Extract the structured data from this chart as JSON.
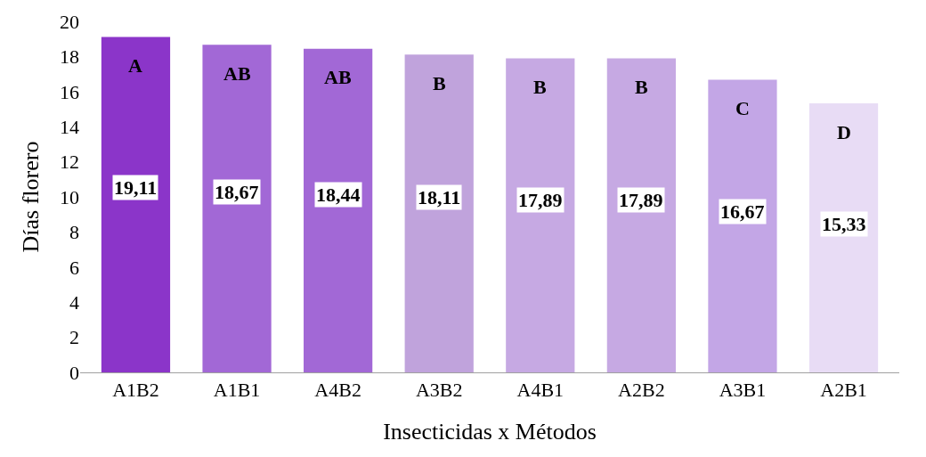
{
  "chart_data": {
    "type": "bar",
    "xlabel": "Insecticidas x Métodos",
    "ylabel": "Días florero",
    "categories": [
      "A1B2",
      "A1B1",
      "A4B2",
      "A3B2",
      "A4B1",
      "A2B2",
      "A3B1",
      "A2B1"
    ],
    "values": [
      19.11,
      18.67,
      18.44,
      18.11,
      17.89,
      17.89,
      16.67,
      15.33
    ],
    "value_labels": [
      "19,11",
      "18,67",
      "18,44",
      "18,11",
      "17,89",
      "17,89",
      "16,67",
      "15,33"
    ],
    "colors": [
      "#8b35c9",
      "#a268d6",
      "#a268d6",
      "#c0a3dc",
      "#c6a9e3",
      "#c6a9e3",
      "#c3a6e6",
      "#e8dcf5"
    ],
    "ylim": [
      0,
      20
    ],
    "yticks": [
      0,
      2,
      4,
      6,
      8,
      10,
      12,
      14,
      16,
      18,
      20
    ],
    "annotations": [
      "A",
      "AB",
      "AB",
      "B",
      "B",
      "B",
      "C",
      "D"
    ]
  }
}
